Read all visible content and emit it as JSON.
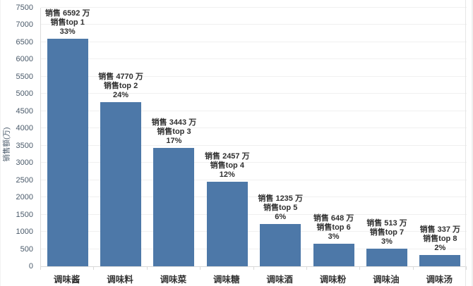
{
  "chart_data": {
    "type": "bar",
    "title": "",
    "xlabel": "",
    "ylabel": "销售额(万)",
    "ylim": [
      0,
      7500
    ],
    "ytick_step": 500,
    "grid": true,
    "legend": false,
    "categories": [
      "调味酱",
      "调味料",
      "调味菜",
      "调味糖",
      "调味酒",
      "调味粉",
      "调味油",
      "调味汤"
    ],
    "values": [
      6592,
      4770,
      3443,
      2457,
      1235,
      648,
      513,
      337
    ],
    "annotations": [
      {
        "sales": "销售 6592 万",
        "rank": "销售top 1",
        "percent": "33%"
      },
      {
        "sales": "销售 4770 万",
        "rank": "销售top 2",
        "percent": "24%"
      },
      {
        "sales": "销售 3443 万",
        "rank": "销售top 3",
        "percent": "17%"
      },
      {
        "sales": "销售 2457 万",
        "rank": "销售top 4",
        "percent": "12%"
      },
      {
        "sales": "销售 1235 万",
        "rank": "销售top 5",
        "percent": "6%"
      },
      {
        "sales": "销售 648 万",
        "rank": "销售top 6",
        "percent": "3%"
      },
      {
        "sales": "销售 513 万",
        "rank": "销售top 7",
        "percent": "3%"
      },
      {
        "sales": "销售 337 万",
        "rank": "销售top 8",
        "percent": "2%"
      }
    ],
    "colors": {
      "bar": "#4d78a8",
      "gridline": "#f0f0f0",
      "axis_line": "#d9d9d9",
      "tick_label": "#4a5a6a",
      "data_label": "#2f2f2f",
      "category_label": "#333333"
    }
  }
}
